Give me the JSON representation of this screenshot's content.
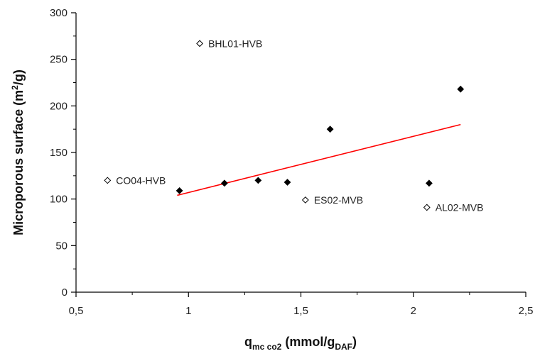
{
  "chart_data": {
    "type": "scatter",
    "xlabel": {
      "main": "q",
      "sub1": "mc co2",
      "mid": " (mmol/g",
      "sub2": "DAF",
      "end": ")"
    },
    "ylabel": {
      "main": "Microporous surface (m",
      "sup": "2",
      "end": "/g)"
    },
    "xlim": [
      0.5,
      2.5
    ],
    "ylim": [
      0,
      300
    ],
    "xticks": [
      0.5,
      1.0,
      1.5,
      2.0,
      2.5
    ],
    "xtick_labels": [
      "0,5",
      "1",
      "1,5",
      "2",
      "2,5"
    ],
    "yticks": [
      0,
      50,
      100,
      150,
      200,
      250,
      300
    ],
    "ytick_labels": [
      "0",
      "50",
      "100",
      "150",
      "200",
      "250",
      "300"
    ],
    "grid": false,
    "series": [
      {
        "marker": "filled-diamond",
        "color": "#000000",
        "points": [
          {
            "x": 0.96,
            "y": 109
          },
          {
            "x": 1.16,
            "y": 117
          },
          {
            "x": 1.31,
            "y": 120
          },
          {
            "x": 1.44,
            "y": 118
          },
          {
            "x": 1.63,
            "y": 175
          },
          {
            "x": 2.07,
            "y": 117
          },
          {
            "x": 2.21,
            "y": 218
          }
        ]
      },
      {
        "marker": "open-diamond",
        "color": "#000000",
        "points": [
          {
            "x": 1.05,
            "y": 267,
            "label": "BHL01-HVB"
          },
          {
            "x": 0.64,
            "y": 120,
            "label": "CO04-HVB"
          },
          {
            "x": 1.52,
            "y": 99,
            "label": "ES02-MVB"
          },
          {
            "x": 2.06,
            "y": 91,
            "label": "AL02-MVB"
          }
        ]
      }
    ],
    "trendline": {
      "color": "#ff0000",
      "x": [
        0.95,
        2.21
      ],
      "y": [
        104,
        180
      ]
    }
  }
}
